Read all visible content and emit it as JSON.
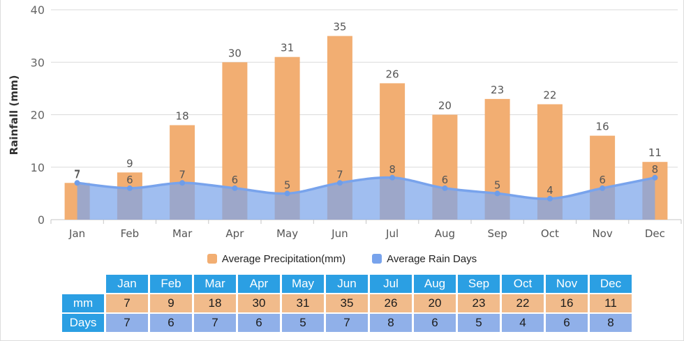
{
  "chart_data": {
    "type": "combo",
    "title": "",
    "categories": [
      "Jan",
      "Feb",
      "Mar",
      "Apr",
      "May",
      "Jun",
      "Jul",
      "Aug",
      "Sep",
      "Oct",
      "Nov",
      "Dec"
    ],
    "series": [
      {
        "name": "Average Precipitation(mm)",
        "type": "bar",
        "color": "#F2AE72",
        "values": [
          7,
          9,
          18,
          30,
          31,
          35,
          26,
          20,
          23,
          22,
          16,
          11
        ]
      },
      {
        "name": "Average Rain Days",
        "type": "area",
        "line_color": "#78A3EC",
        "fill_color": "rgba(124,165,234,0.72)",
        "marker_color": "#6F9DE8",
        "values": [
          7,
          6,
          7,
          6,
          5,
          7,
          8,
          6,
          5,
          4,
          6,
          8
        ]
      }
    ],
    "ylabel": "Rainfall (mm)",
    "ylim": [
      0,
      40
    ],
    "yticks": [
      0,
      10,
      20,
      30,
      40
    ],
    "grid": true,
    "legend_position": "bottom"
  },
  "table": {
    "row_labels": [
      "mm",
      "Days"
    ],
    "header_color": "#2B9FE3",
    "mm_cell_color": "#F1BB8B",
    "days_cell_color": "#90B0E9"
  },
  "style": {
    "grid_color": "#DADADA",
    "axis_color": "#C6C6C6",
    "value_label_color": "#555555",
    "category_label_color": "#555555",
    "tick_label_color": "#666666",
    "ylabel_color": "#333333",
    "border_color": "#DCDCDC"
  }
}
